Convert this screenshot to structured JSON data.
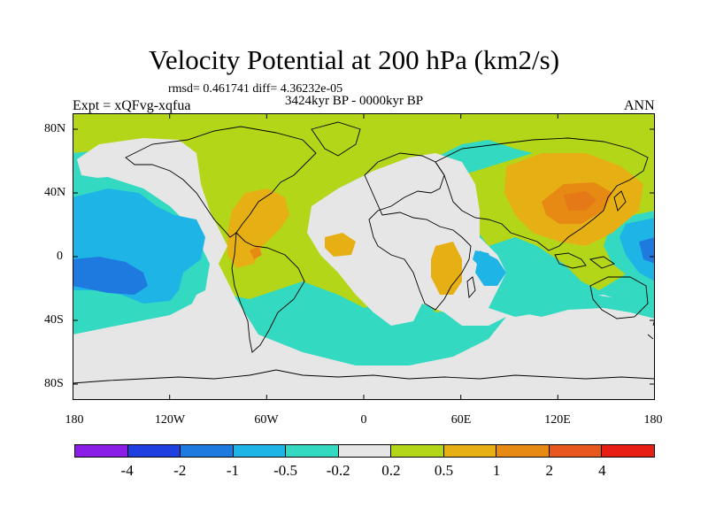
{
  "title": "Velocity Potential at 200 hPa (km2/s)",
  "stats": "rmsd= 0.461741 diff= 4.36232e-05",
  "period": "3424kyr BP - 0000kyr BP",
  "left_label": "Expt = xQFvg-xqfua",
  "right_label": "ANN",
  "y_ticks": [
    "80N",
    "40N",
    "0",
    "40S",
    "80S"
  ],
  "x_ticks": [
    "180",
    "120W",
    "60W",
    "0",
    "60E",
    "120E",
    "180"
  ],
  "colorbar": {
    "colors": [
      "#8a1ee6",
      "#1f3fe0",
      "#1f7ae0",
      "#1fb4e6",
      "#33d9c0",
      "#e6e6e6",
      "#b4d619",
      "#e6b014",
      "#e68a14",
      "#e6581e",
      "#e61e14"
    ],
    "labels": [
      "-4",
      "-2",
      "-1",
      "-0.5",
      "-0.2",
      "0.2",
      "0.5",
      "1",
      "2",
      "4"
    ]
  },
  "map_colors": {
    "neg_strong": "#1f7ae0",
    "neg_mid": "#1fb4e6",
    "neg_weak": "#33d9c0",
    "neutral": "#e6e6e6",
    "pos_weak": "#b4d619",
    "pos_mid": "#e6b014",
    "pos_strong": "#e68a14"
  }
}
